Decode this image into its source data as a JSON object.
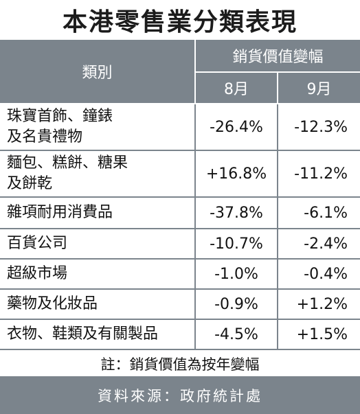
{
  "chart_data": {
    "type": "table",
    "title": "本港零售業分類表現",
    "header": {
      "category": "類別",
      "group": "銷貨價值變幅",
      "months": [
        "8月",
        "9月"
      ]
    },
    "rows": [
      {
        "category_lines": [
          "珠寶首飾、鐘錶",
          "及名貴禮物"
        ],
        "aug": "-26.4%",
        "sep": "-12.3%"
      },
      {
        "category_lines": [
          "麵包、糕餅、糖果",
          "及餅乾"
        ],
        "aug": "+16.8%",
        "sep": "-11.2%"
      },
      {
        "category_lines": [
          "雜項耐用消費品"
        ],
        "aug": "-37.8%",
        "sep": "-6.1%"
      },
      {
        "category_lines": [
          "百貨公司"
        ],
        "aug": "-10.7%",
        "sep": "-2.4%"
      },
      {
        "category_lines": [
          "超級市場"
        ],
        "aug": "-1.0%",
        "sep": "-0.4%"
      },
      {
        "category_lines": [
          "藥物及化妝品"
        ],
        "aug": "-0.9%",
        "sep": "+1.2%"
      },
      {
        "category_lines": [
          "衣物、鞋類及有關製品"
        ],
        "aug": "-4.5%",
        "sep": "+1.5%"
      }
    ],
    "colors": {
      "negative": "#e8473a",
      "positive": "#111111",
      "header_bg": "#7b848c"
    }
  },
  "note": "註：銷貨價值為按年變幅",
  "source": "資料來源：政府統計處"
}
